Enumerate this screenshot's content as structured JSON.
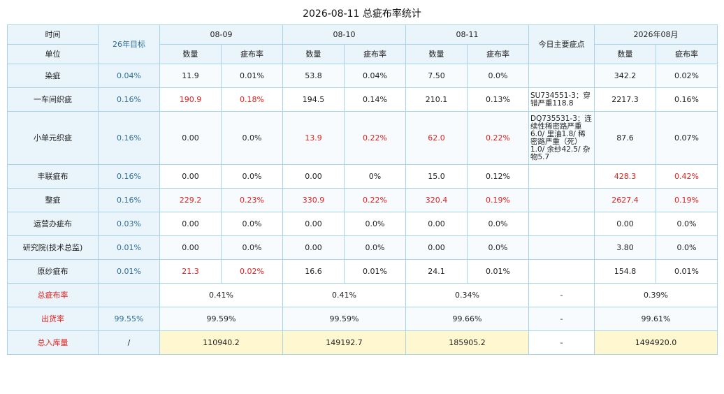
{
  "title": "2026-08-11 总疵布率统计",
  "header": {
    "time_label": "时间",
    "unit_label": "单位",
    "target_label": "26年目标",
    "dates": [
      "08-09",
      "08-10",
      "08-11"
    ],
    "main_defects_label": "今日主要疵点",
    "month_label": "2026年08月",
    "qty_label": "数量",
    "rate_label": "疵布率"
  },
  "rows": [
    {
      "name": "染疵",
      "target": "0.04%",
      "d1_qty": "11.9",
      "d1_rate": "0.01%",
      "d2_qty": "53.8",
      "d2_rate": "0.04%",
      "d3_qty": "7.50",
      "d3_rate": "0.0%",
      "note": "",
      "m_qty": "342.2",
      "m_rate": "0.02%"
    },
    {
      "name": "一车间织疵",
      "target": "0.16%",
      "d1_qty": "190.9",
      "d1_rate": "0.18%",
      "d2_qty": "194.5",
      "d2_rate": "0.14%",
      "d3_qty": "210.1",
      "d3_rate": "0.13%",
      "note": "SU734551-3：穿错严重118.8",
      "m_qty": "2217.3",
      "m_rate": "0.16%"
    },
    {
      "name": "小单元织疵",
      "target": "0.16%",
      "d1_qty": "0.00",
      "d1_rate": "0.0%",
      "d2_qty": "13.9",
      "d2_rate": "0.22%",
      "d3_qty": "62.0",
      "d3_rate": "0.22%",
      "note": "DQ735531-3：连续性稀密路严重6.0/ 里油1.8/ 稀密路严重（死）1.0/ 余纱42.5/ 杂物5.7",
      "m_qty": "87.6",
      "m_rate": "0.07%"
    },
    {
      "name": "丰联疵布",
      "target": "0.16%",
      "d1_qty": "0.00",
      "d1_rate": "0.0%",
      "d2_qty": "0.00",
      "d2_rate": "0%",
      "d3_qty": "15.0",
      "d3_rate": "0.12%",
      "note": "",
      "m_qty": "428.3",
      "m_rate": "0.42%"
    },
    {
      "name": "整疵",
      "target": "0.16%",
      "d1_qty": "229.2",
      "d1_rate": "0.23%",
      "d2_qty": "330.9",
      "d2_rate": "0.22%",
      "d3_qty": "320.4",
      "d3_rate": "0.19%",
      "note": "",
      "m_qty": "2627.4",
      "m_rate": "0.19%"
    },
    {
      "name": "运营办疵布",
      "target": "0.03%",
      "d1_qty": "0.00",
      "d1_rate": "0.0%",
      "d2_qty": "0.00",
      "d2_rate": "0.0%",
      "d3_qty": "0.00",
      "d3_rate": "0.0%",
      "note": "",
      "m_qty": "0.00",
      "m_rate": "0.0%"
    },
    {
      "name": "研究院(技术总监)",
      "target": "0.01%",
      "d1_qty": "0.00",
      "d1_rate": "0.0%",
      "d2_qty": "0.00",
      "d2_rate": "0.0%",
      "d3_qty": "0.00",
      "d3_rate": "0.0%",
      "note": "",
      "m_qty": "3.80",
      "m_rate": "0.0%"
    },
    {
      "name": "原纱疵布",
      "target": "0.01%",
      "d1_qty": "21.3",
      "d1_rate": "0.02%",
      "d2_qty": "16.6",
      "d2_rate": "0.01%",
      "d3_qty": "24.1",
      "d3_rate": "0.01%",
      "note": "",
      "m_qty": "154.8",
      "m_rate": "0.01%"
    }
  ],
  "totals": {
    "total_rate": {
      "name": "总疵布率",
      "target": "",
      "d1": "0.41%",
      "d2": "0.41%",
      "d3": "0.34%",
      "note": "-",
      "month": "0.39%"
    },
    "ship_rate": {
      "name": "出货率",
      "target": "99.55%",
      "d1": "99.59%",
      "d2": "99.59%",
      "d3": "99.66%",
      "note": "-",
      "month": "99.61%"
    },
    "stock_in": {
      "name": "总入库量",
      "target": "/",
      "d1": "110940.2",
      "d2": "149192.7",
      "d3": "185905.2",
      "note": "-",
      "month": "1494920.0"
    }
  },
  "colors": {
    "highlight_red": "#e0211d",
    "header_bg": "#eaf4fb",
    "border": "#a9d3e6",
    "stock_bg": "#fff7cf"
  }
}
